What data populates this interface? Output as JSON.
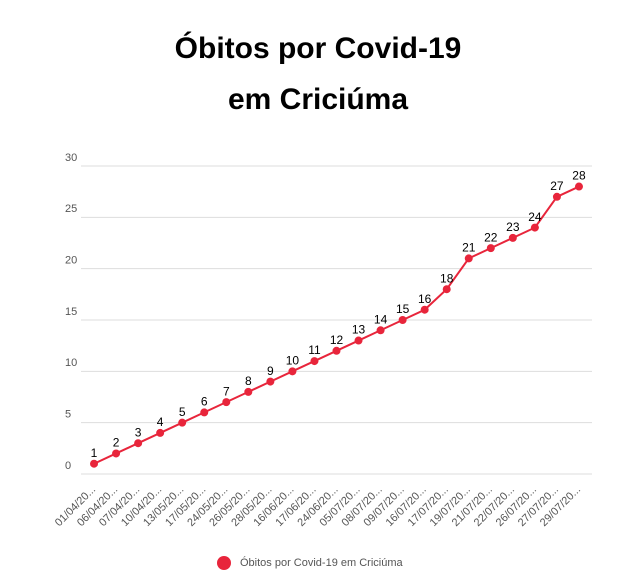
{
  "chart_data": {
    "type": "line",
    "title": [
      "Óbitos por Covid-19",
      "em Criciúma"
    ],
    "categories": [
      "01/04/20...",
      "06/04/20...",
      "07/04/20...",
      "10/04/20...",
      "13/05/20...",
      "17/05/20...",
      "24/05/20...",
      "26/05/20...",
      "28/05/20...",
      "16/06/20...",
      "17/06/20...",
      "24/06/20...",
      "05/07/20...",
      "08/07/20...",
      "09/07/20...",
      "16/07/20...",
      "17/07/20...",
      "19/07/20...",
      "21/07/20...",
      "22/07/20...",
      "26/07/20...",
      "27/07/20...",
      "29/07/20..."
    ],
    "series": [
      {
        "name": "Óbitos por Covid-19 em Criciúma",
        "color": "#e8253b",
        "values": [
          1,
          2,
          3,
          4,
          5,
          6,
          7,
          8,
          9,
          10,
          11,
          12,
          13,
          14,
          15,
          16,
          18,
          21,
          22,
          23,
          24,
          27,
          28
        ]
      }
    ],
    "ylim": [
      0,
      30
    ],
    "yticks": [
      0,
      5,
      10,
      15,
      20,
      25,
      30
    ],
    "grid": true,
    "legend": "bottom"
  }
}
